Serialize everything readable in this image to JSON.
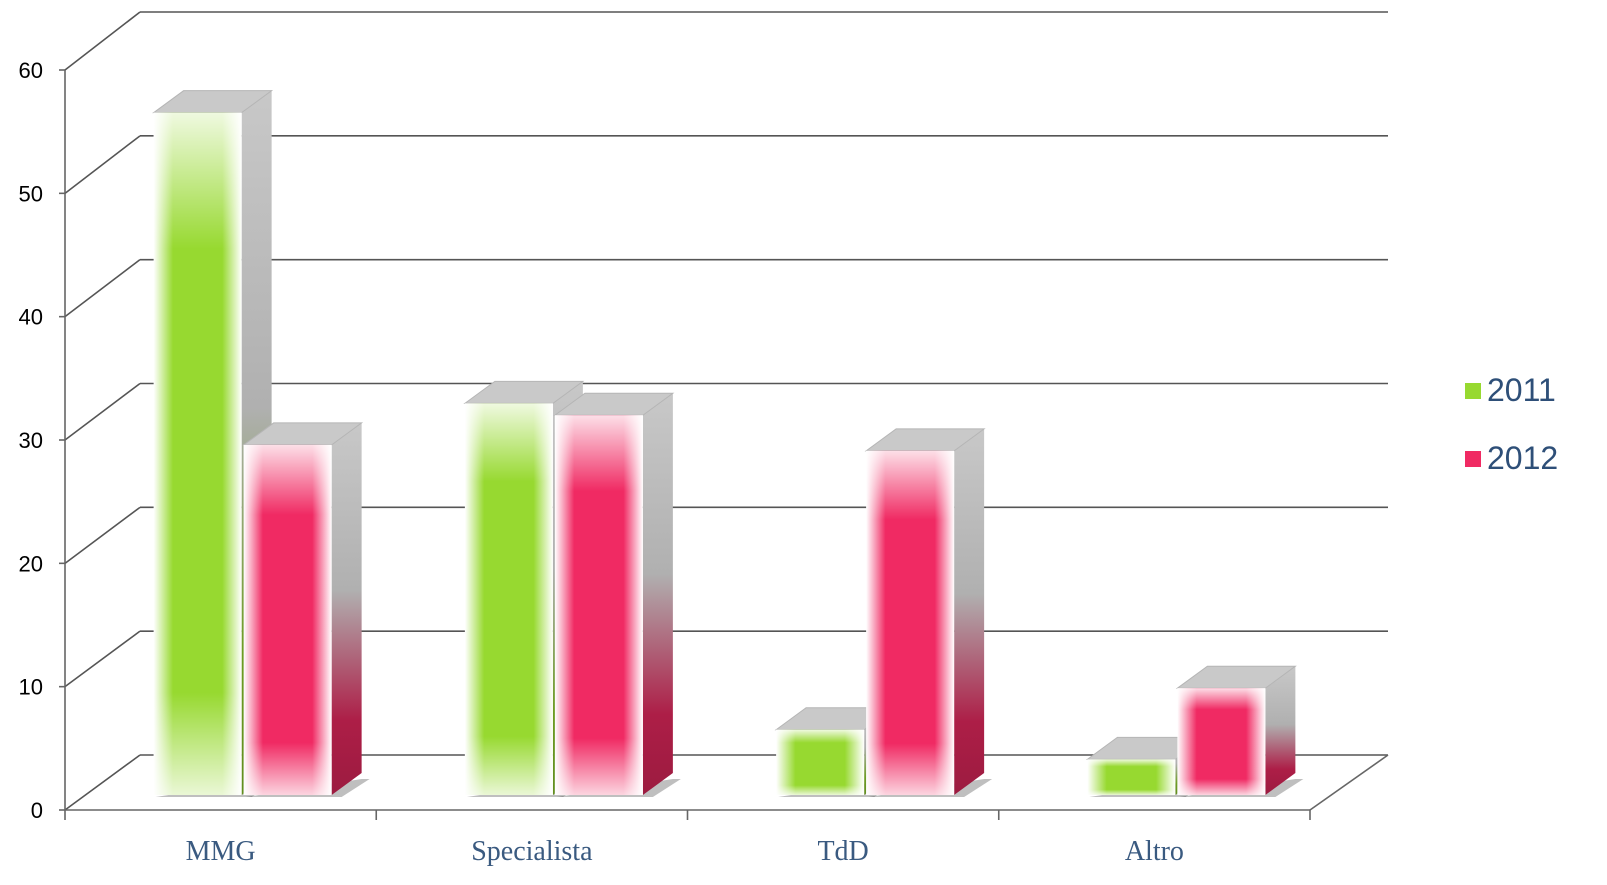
{
  "chart_data": {
    "type": "bar",
    "categories": [
      "MMG",
      "Specialista",
      "TdD",
      "Altro"
    ],
    "series": [
      {
        "name": "2011",
        "values": [
          57.5,
          33,
          5.5,
          3
        ],
        "color": "#97d930"
      },
      {
        "name": "2012",
        "values": [
          29.5,
          32,
          29,
          9
        ],
        "color": "#f02a63"
      }
    ],
    "yticks": [
      0,
      10,
      20,
      30,
      40,
      50,
      60
    ],
    "ylim": [
      0,
      60
    ],
    "grid": true,
    "three_d": true,
    "legend_position": "right",
    "title": "",
    "xlabel": "",
    "ylabel": ""
  }
}
